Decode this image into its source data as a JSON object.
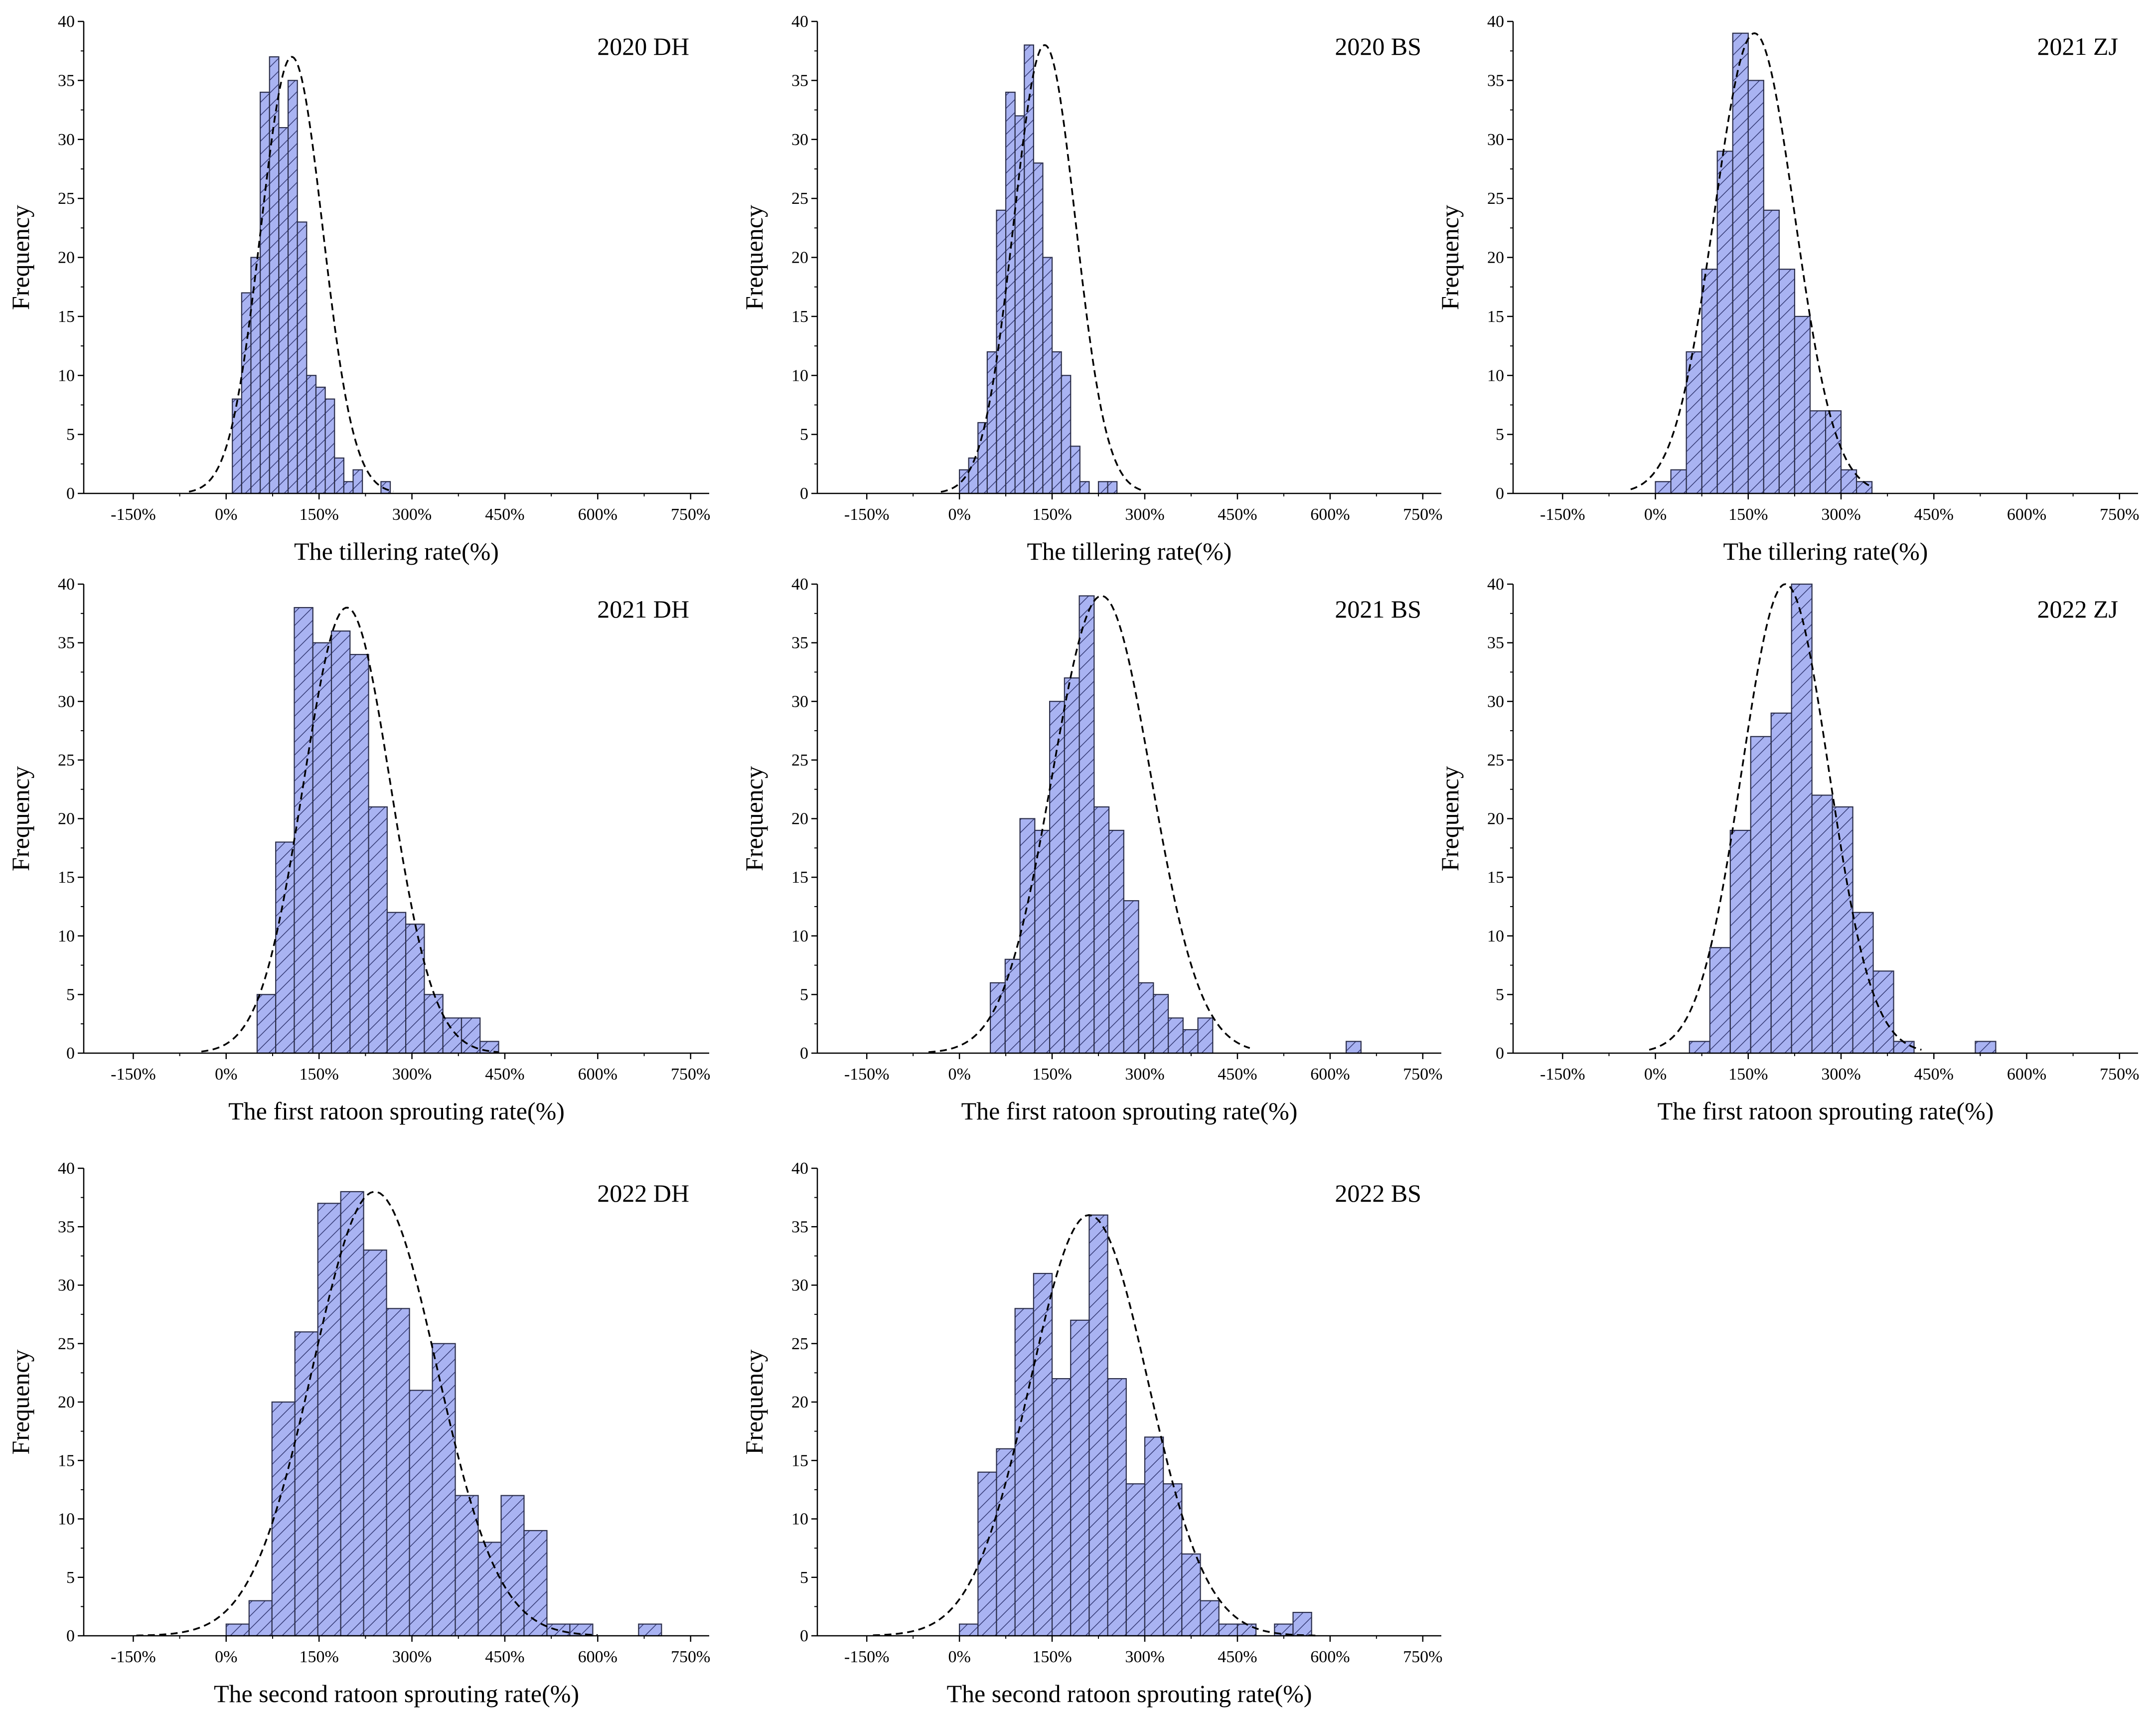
{
  "figure": {
    "style": {
      "bar_fill": "#a9b3f2",
      "bar_stroke": "#2b2e4a",
      "hatch_color": "#3a3f7a",
      "curve_color": "#000000",
      "axis_color": "#000000"
    },
    "y_axis_label": "Frequency"
  },
  "chart_data": [
    {
      "type": "histogram",
      "title": "2020 DH",
      "xlabel": "The tillering rate(%)",
      "ylabel": "Frequency",
      "xlim": [
        -230,
        780
      ],
      "ylim": [
        0,
        40
      ],
      "x_ticks": [
        -150,
        0,
        150,
        300,
        450,
        600,
        750
      ],
      "x_tick_labels": [
        "-150%",
        "0%",
        "150%",
        "300%",
        "450%",
        "600%",
        "750%"
      ],
      "y_ticks": [
        0,
        5,
        10,
        15,
        20,
        25,
        30,
        35,
        40
      ],
      "y_tick_labels": [
        "0",
        "5",
        "10",
        "15",
        "20",
        "25",
        "30",
        "35",
        "40"
      ],
      "bin_start": 10,
      "bin_width": 15,
      "values": [
        8,
        17,
        20,
        34,
        37,
        31,
        35,
        23,
        10,
        9,
        8,
        3,
        1,
        2,
        0,
        0,
        1
      ],
      "normal_fit": {
        "mean": 106,
        "sd": 50,
        "peak": 37,
        "range": [
          -60,
          270
        ]
      }
    },
    {
      "type": "histogram",
      "title": "2020 BS",
      "xlabel": "The tillering rate(%)",
      "ylabel": "Frequency",
      "xlim": [
        -230,
        780
      ],
      "ylim": [
        0,
        40
      ],
      "x_ticks": [
        -150,
        0,
        150,
        300,
        450,
        600,
        750
      ],
      "x_tick_labels": [
        "-150%",
        "0%",
        "150%",
        "300%",
        "450%",
        "600%",
        "750%"
      ],
      "y_ticks": [
        0,
        5,
        10,
        15,
        20,
        25,
        30,
        35,
        40
      ],
      "y_tick_labels": [
        "0",
        "5",
        "10",
        "15",
        "20",
        "25",
        "30",
        "35",
        "40"
      ],
      "bin_start": 0,
      "bin_width": 15,
      "values": [
        2,
        3,
        6,
        12,
        24,
        34,
        32,
        38,
        28,
        20,
        12,
        10,
        4,
        1,
        0,
        1,
        1
      ],
      "normal_fit": {
        "mean": 138,
        "sd": 50,
        "peak": 38,
        "range": [
          -30,
          300
        ]
      }
    },
    {
      "type": "histogram",
      "title": "2021 ZJ",
      "xlabel": "The tillering rate(%)",
      "ylabel": "Frequency",
      "xlim": [
        -230,
        780
      ],
      "ylim": [
        0,
        40
      ],
      "x_ticks": [
        -150,
        0,
        150,
        300,
        450,
        600,
        750
      ],
      "x_tick_labels": [
        "-150%",
        "0%",
        "150%",
        "300%",
        "450%",
        "600%",
        "750%"
      ],
      "y_ticks": [
        0,
        5,
        10,
        15,
        20,
        25,
        30,
        35,
        40
      ],
      "y_tick_labels": [
        "0",
        "5",
        "10",
        "15",
        "20",
        "25",
        "30",
        "35",
        "40"
      ],
      "bin_start": 0,
      "bin_width": 25,
      "values": [
        1,
        2,
        12,
        19,
        29,
        39,
        35,
        24,
        19,
        15,
        7,
        7,
        2,
        1
      ],
      "normal_fit": {
        "mean": 160,
        "sd": 65,
        "peak": 39,
        "range": [
          -40,
          350
        ]
      }
    },
    {
      "type": "histogram",
      "title": "2021 DH",
      "xlabel": "The first ratoon sprouting rate(%)",
      "ylabel": "Frequency",
      "xlim": [
        -230,
        780
      ],
      "ylim": [
        0,
        40
      ],
      "x_ticks": [
        -150,
        0,
        150,
        300,
        450,
        600,
        750
      ],
      "x_tick_labels": [
        "-150%",
        "0%",
        "150%",
        "300%",
        "450%",
        "600%",
        "750%"
      ],
      "y_ticks": [
        0,
        5,
        10,
        15,
        20,
        25,
        30,
        35,
        40
      ],
      "y_tick_labels": [
        "0",
        "5",
        "10",
        "15",
        "20",
        "25",
        "30",
        "35",
        "40"
      ],
      "bin_start": 50,
      "bin_width": 30,
      "values": [
        5,
        18,
        38,
        35,
        36,
        34,
        21,
        12,
        11,
        5,
        3,
        3,
        1
      ],
      "normal_fit": {
        "mean": 195,
        "sd": 70,
        "peak": 38,
        "range": [
          -40,
          440
        ]
      }
    },
    {
      "type": "histogram",
      "title": "2021 BS",
      "xlabel": "The first ratoon sprouting rate(%)",
      "ylabel": "Frequency",
      "xlim": [
        -230,
        780
      ],
      "ylim": [
        0,
        40
      ],
      "x_ticks": [
        -150,
        0,
        150,
        300,
        450,
        600,
        750
      ],
      "x_tick_labels": [
        "-150%",
        "0%",
        "150%",
        "300%",
        "450%",
        "600%",
        "750%"
      ],
      "y_ticks": [
        0,
        5,
        10,
        15,
        20,
        25,
        30,
        35,
        40
      ],
      "y_tick_labels": [
        "0",
        "5",
        "10",
        "15",
        "20",
        "25",
        "30",
        "35",
        "40"
      ],
      "bin_start": 50,
      "bin_width": 24,
      "values": [
        6,
        8,
        20,
        19,
        30,
        32,
        39,
        21,
        19,
        13,
        6,
        5,
        3,
        2,
        3,
        0,
        0,
        0,
        0,
        0,
        0,
        0,
        0,
        0,
        1
      ],
      "normal_fit": {
        "mean": 230,
        "sd": 80,
        "peak": 39,
        "range": [
          -50,
          470
        ]
      }
    },
    {
      "type": "histogram",
      "title": "2022 ZJ",
      "xlabel": "The first ratoon sprouting rate(%)",
      "ylabel": "Frequency",
      "xlim": [
        -230,
        780
      ],
      "ylim": [
        0,
        40
      ],
      "x_ticks": [
        -150,
        0,
        150,
        300,
        450,
        600,
        750
      ],
      "x_tick_labels": [
        "-150%",
        "0%",
        "150%",
        "300%",
        "450%",
        "600%",
        "750%"
      ],
      "y_ticks": [
        0,
        5,
        10,
        15,
        20,
        25,
        30,
        35,
        40
      ],
      "y_tick_labels": [
        "0",
        "5",
        "10",
        "15",
        "20",
        "25",
        "30",
        "35",
        "40"
      ],
      "bin_start": 55,
      "bin_width": 33,
      "values": [
        1,
        9,
        19,
        27,
        29,
        40,
        22,
        21,
        12,
        7,
        1,
        0,
        0,
        0,
        1
      ],
      "normal_fit": {
        "mean": 210,
        "sd": 70,
        "peak": 40,
        "range": [
          -10,
          430
        ]
      }
    },
    {
      "type": "histogram",
      "title": "2022 DH",
      "xlabel": "The second ratoon sprouting rate(%)",
      "ylabel": "Frequency",
      "xlim": [
        -230,
        780
      ],
      "ylim": [
        0,
        40
      ],
      "x_ticks": [
        -150,
        0,
        150,
        300,
        450,
        600,
        750
      ],
      "x_tick_labels": [
        "-150%",
        "0%",
        "150%",
        "300%",
        "450%",
        "600%",
        "750%"
      ],
      "y_ticks": [
        0,
        5,
        10,
        15,
        20,
        25,
        30,
        35,
        40
      ],
      "y_tick_labels": [
        "0",
        "5",
        "10",
        "15",
        "20",
        "25",
        "30",
        "35",
        "40"
      ],
      "bin_start": 0,
      "bin_width": 37,
      "values": [
        1,
        3,
        20,
        26,
        37,
        38,
        33,
        28,
        21,
        25,
        12,
        8,
        12,
        9,
        1,
        1,
        0,
        0,
        1
      ],
      "normal_fit": {
        "mean": 240,
        "sd": 100,
        "peak": 38,
        "range": [
          -145,
          600
        ]
      }
    },
    {
      "type": "histogram",
      "title": "2022 BS",
      "xlabel": "The second ratoon sprouting rate(%)",
      "ylabel": "Frequency",
      "xlim": [
        -230,
        780
      ],
      "ylim": [
        0,
        40
      ],
      "x_ticks": [
        -150,
        0,
        150,
        300,
        450,
        600,
        750
      ],
      "x_tick_labels": [
        "-150%",
        "0%",
        "150%",
        "300%",
        "450%",
        "600%",
        "750%"
      ],
      "y_ticks": [
        0,
        5,
        10,
        15,
        20,
        25,
        30,
        35,
        40
      ],
      "y_tick_labels": [
        "0",
        "5",
        "10",
        "15",
        "20",
        "25",
        "30",
        "35",
        "40"
      ],
      "bin_start": 0,
      "bin_width": 30,
      "values": [
        1,
        14,
        16,
        28,
        31,
        22,
        27,
        36,
        22,
        13,
        17,
        13,
        7,
        3,
        1,
        1,
        0,
        1,
        2
      ],
      "normal_fit": {
        "mean": 210,
        "sd": 95,
        "peak": 36,
        "range": [
          -140,
          580
        ]
      }
    }
  ]
}
